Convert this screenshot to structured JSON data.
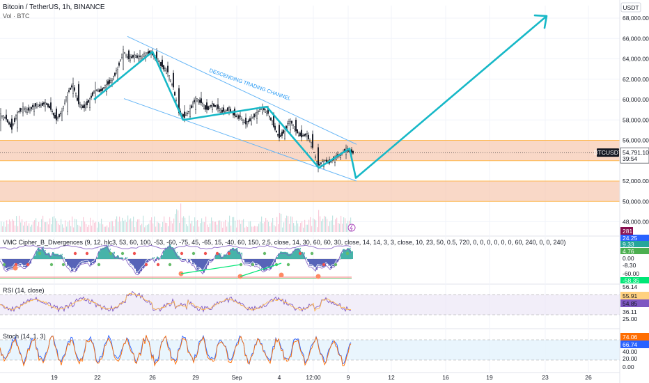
{
  "header": {
    "title": "Bitcoin / TetherUS, 1h, BINANCE",
    "subtitle": "Vol · BTC",
    "currency": "USDT",
    "symbol_tag": "BTCUSDT",
    "current_price": "54,791.10",
    "countdown": "39:54",
    "volume_tag": "281"
  },
  "annotations": {
    "channel_label": "DESCENDING TRADING CHANNEL"
  },
  "panes": {
    "vmc_label": "VMC Cipher_B_Divergences (9, 12, hlc3, 53, 60, 100, -53, -60, -75, 45, -65, 15, -40, 60, 150, 2.5, close, 14, 30, 60, 60, 30, close, 14, 14, 3, 3, close, 10, 23, 50, 0.5, 720, 0, 0, 0, 0, 0, 0, 60, 240, 0, 0, 240)",
    "rsi_label": "RSI (14, close)",
    "stoch_label": "Stoch (14, 1, 3)"
  },
  "chart_data": {
    "type": "candlestick",
    "main_price": {
      "y_ticks": [
        48000,
        50000,
        52000,
        56000,
        58000,
        60000,
        62000,
        64000,
        66000,
        68000
      ],
      "y_tick_labels": [
        "48,000.00",
        "50,000.00",
        "52,000.00",
        "56,000.00",
        "58,000.00",
        "60,000.00",
        "62,000.00",
        "64,000.00",
        "66,000.00",
        "68,000.00"
      ],
      "ylim": [
        47000,
        69500
      ],
      "trend_path_values": [
        {
          "x": 135,
          "y": 60000
        },
        {
          "x": 219,
          "y": 64700
        },
        {
          "x": 263,
          "y": 58000
        },
        {
          "x": 383,
          "y": 59300
        },
        {
          "x": 458,
          "y": 53300
        },
        {
          "x": 502,
          "y": 55200
        },
        {
          "x": 511,
          "y": 52300
        },
        {
          "x": 785,
          "y": 68200
        }
      ],
      "channel_upper": [
        {
          "x": 183,
          "y": 66200
        },
        {
          "x": 512,
          "y": 55600
        }
      ],
      "channel_lower": [
        {
          "x": 178,
          "y": 60100
        },
        {
          "x": 512,
          "y": 52000
        }
      ],
      "zones": [
        {
          "from": 54000,
          "to": 56000,
          "color": "#f7cbb4"
        },
        {
          "from": 50000,
          "to": 52000,
          "color": "#f7cbb4"
        }
      ],
      "series": [
        {
          "t": 0,
          "o": 58000,
          "h": 59200,
          "l": 56200,
          "c": 58500
        },
        {
          "t": 8,
          "o": 58500,
          "h": 59400,
          "l": 57800,
          "c": 58100
        },
        {
          "t": 16,
          "o": 58100,
          "h": 58800,
          "l": 56500,
          "c": 57200
        },
        {
          "t": 24,
          "o": 57200,
          "h": 59000,
          "l": 57000,
          "c": 58700
        },
        {
          "t": 32,
          "o": 58700,
          "h": 59600,
          "l": 58200,
          "c": 59200
        },
        {
          "t": 40,
          "o": 59200,
          "h": 59800,
          "l": 58400,
          "c": 58800
        },
        {
          "t": 48,
          "o": 58800,
          "h": 59900,
          "l": 58500,
          "c": 59500
        },
        {
          "t": 56,
          "o": 59500,
          "h": 60000,
          "l": 59000,
          "c": 59300
        },
        {
          "t": 64,
          "o": 59300,
          "h": 60100,
          "l": 58800,
          "c": 59700
        },
        {
          "t": 72,
          "o": 59700,
          "h": 60200,
          "l": 58900,
          "c": 59100
        },
        {
          "t": 80,
          "o": 59100,
          "h": 59500,
          "l": 57600,
          "c": 58000
        },
        {
          "t": 88,
          "o": 58000,
          "h": 59000,
          "l": 57800,
          "c": 58800
        },
        {
          "t": 96,
          "o": 58800,
          "h": 61000,
          "l": 58500,
          "c": 60600
        },
        {
          "t": 104,
          "o": 60600,
          "h": 62200,
          "l": 60200,
          "c": 61500
        },
        {
          "t": 112,
          "o": 61500,
          "h": 61800,
          "l": 59000,
          "c": 59500
        },
        {
          "t": 120,
          "o": 59500,
          "h": 60000,
          "l": 58700,
          "c": 59200
        },
        {
          "t": 128,
          "o": 59200,
          "h": 60200,
          "l": 58900,
          "c": 60000
        },
        {
          "t": 136,
          "o": 60000,
          "h": 62600,
          "l": 59700,
          "c": 61000
        },
        {
          "t": 144,
          "o": 61000,
          "h": 61600,
          "l": 60300,
          "c": 60800
        },
        {
          "t": 152,
          "o": 60800,
          "h": 61800,
          "l": 60500,
          "c": 61500
        },
        {
          "t": 160,
          "o": 61500,
          "h": 62200,
          "l": 61000,
          "c": 61900
        },
        {
          "t": 168,
          "o": 61900,
          "h": 63200,
          "l": 61700,
          "c": 63000
        },
        {
          "t": 176,
          "o": 63000,
          "h": 65200,
          "l": 62800,
          "c": 64800
        },
        {
          "t": 184,
          "o": 64800,
          "h": 65000,
          "l": 63500,
          "c": 64000
        },
        {
          "t": 192,
          "o": 64000,
          "h": 64600,
          "l": 63400,
          "c": 64300
        },
        {
          "t": 200,
          "o": 64300,
          "h": 64900,
          "l": 63600,
          "c": 64100
        },
        {
          "t": 208,
          "o": 64100,
          "h": 64800,
          "l": 63800,
          "c": 64500
        },
        {
          "t": 216,
          "o": 64500,
          "h": 65100,
          "l": 64100,
          "c": 64700
        },
        {
          "t": 224,
          "o": 64700,
          "h": 64900,
          "l": 63600,
          "c": 63900
        },
        {
          "t": 232,
          "o": 63900,
          "h": 64300,
          "l": 62900,
          "c": 63300
        },
        {
          "t": 240,
          "o": 63300,
          "h": 63700,
          "l": 62200,
          "c": 62600
        },
        {
          "t": 248,
          "o": 62600,
          "h": 62900,
          "l": 60800,
          "c": 61100
        },
        {
          "t": 256,
          "o": 61100,
          "h": 61400,
          "l": 58300,
          "c": 58800
        },
        {
          "t": 264,
          "o": 58800,
          "h": 59600,
          "l": 57900,
          "c": 58300
        },
        {
          "t": 272,
          "o": 58300,
          "h": 59300,
          "l": 58000,
          "c": 59000
        },
        {
          "t": 280,
          "o": 59000,
          "h": 60400,
          "l": 58600,
          "c": 60100
        },
        {
          "t": 288,
          "o": 60100,
          "h": 61100,
          "l": 59400,
          "c": 59700
        },
        {
          "t": 296,
          "o": 59700,
          "h": 60000,
          "l": 58600,
          "c": 59000
        },
        {
          "t": 304,
          "o": 59000,
          "h": 59800,
          "l": 58500,
          "c": 59500
        },
        {
          "t": 312,
          "o": 59500,
          "h": 60200,
          "l": 58800,
          "c": 59200
        },
        {
          "t": 320,
          "o": 59200,
          "h": 59600,
          "l": 58400,
          "c": 58700
        },
        {
          "t": 328,
          "o": 58700,
          "h": 59400,
          "l": 58300,
          "c": 59100
        },
        {
          "t": 336,
          "o": 59100,
          "h": 59500,
          "l": 58100,
          "c": 58400
        },
        {
          "t": 344,
          "o": 58400,
          "h": 58900,
          "l": 57800,
          "c": 58200
        },
        {
          "t": 352,
          "o": 58200,
          "h": 58700,
          "l": 57200,
          "c": 57600
        },
        {
          "t": 360,
          "o": 57600,
          "h": 58400,
          "l": 57300,
          "c": 58100
        },
        {
          "t": 368,
          "o": 58100,
          "h": 59000,
          "l": 57700,
          "c": 58700
        },
        {
          "t": 376,
          "o": 58700,
          "h": 59400,
          "l": 58400,
          "c": 59200
        },
        {
          "t": 384,
          "o": 59200,
          "h": 59500,
          "l": 58300,
          "c": 58600
        },
        {
          "t": 392,
          "o": 58600,
          "h": 58800,
          "l": 57200,
          "c": 57500
        },
        {
          "t": 400,
          "o": 57500,
          "h": 57900,
          "l": 55600,
          "c": 56200
        },
        {
          "t": 408,
          "o": 56200,
          "h": 57300,
          "l": 55900,
          "c": 57000
        },
        {
          "t": 416,
          "o": 57000,
          "h": 58300,
          "l": 56800,
          "c": 58000
        },
        {
          "t": 424,
          "o": 58000,
          "h": 58400,
          "l": 56600,
          "c": 57000
        },
        {
          "t": 432,
          "o": 57000,
          "h": 57400,
          "l": 56000,
          "c": 56400
        },
        {
          "t": 440,
          "o": 56400,
          "h": 56900,
          "l": 55600,
          "c": 56600
        },
        {
          "t": 448,
          "o": 56600,
          "h": 57100,
          "l": 55000,
          "c": 55300
        },
        {
          "t": 456,
          "o": 55300,
          "h": 55800,
          "l": 52600,
          "c": 53400
        },
        {
          "t": 464,
          "o": 53400,
          "h": 54400,
          "l": 53100,
          "c": 54100
        },
        {
          "t": 472,
          "o": 54100,
          "h": 54600,
          "l": 53500,
          "c": 53800
        },
        {
          "t": 480,
          "o": 53800,
          "h": 54500,
          "l": 53600,
          "c": 54300
        },
        {
          "t": 488,
          "o": 54300,
          "h": 54900,
          "l": 53900,
          "c": 54600
        },
        {
          "t": 496,
          "o": 54600,
          "h": 55400,
          "l": 54200,
          "c": 55100
        },
        {
          "t": 504,
          "o": 55100,
          "h": 55500,
          "l": 54400,
          "c": 54800
        }
      ]
    },
    "vmc_axis": {
      "tick_labels": [
        "0.00",
        "-8.30",
        "-60.00"
      ],
      "value_tags": [
        {
          "text": "24.25",
          "color": "#2962ff"
        },
        {
          "text": "9.33",
          "color": "#26a69a"
        },
        {
          "text": "4.76",
          "color": "#4caf50"
        },
        {
          "text": "-58.35",
          "color": "#00e676"
        }
      ]
    },
    "rsi_axis": {
      "tick_labels": [
        "56.14",
        "36.11",
        "25.00"
      ],
      "value_tags": [
        {
          "text": "55.91",
          "color": "#ffd180"
        },
        {
          "text": "54.85",
          "color": "#7e57c2"
        }
      ]
    },
    "stoch_axis": {
      "tick_labels": [
        "40.00",
        "20.00",
        "0.00"
      ],
      "value_tags": [
        {
          "text": "74.06",
          "color": "#ff6d00"
        },
        {
          "text": "66.74",
          "color": "#2962ff"
        }
      ]
    },
    "x_axis": {
      "tick_labels": [
        "19",
        "22",
        "26",
        "29",
        "Sep",
        "4",
        "12:00",
        "9",
        "12",
        "16",
        "19",
        "23",
        "26"
      ]
    }
  }
}
